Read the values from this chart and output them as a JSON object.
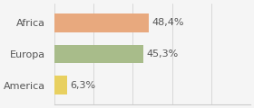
{
  "categories": [
    "Africa",
    "Europa",
    "America"
  ],
  "values": [
    48.4,
    45.3,
    6.3
  ],
  "labels": [
    "48,4%",
    "45,3%",
    "6,3%"
  ],
  "bar_colors": [
    "#e8a97e",
    "#a8bc8a",
    "#e8d060"
  ],
  "background_color": "#f5f5f5",
  "xlim": [
    0,
    100
  ],
  "bar_height": 0.6,
  "label_fontsize": 8.0,
  "tick_fontsize": 8.0
}
